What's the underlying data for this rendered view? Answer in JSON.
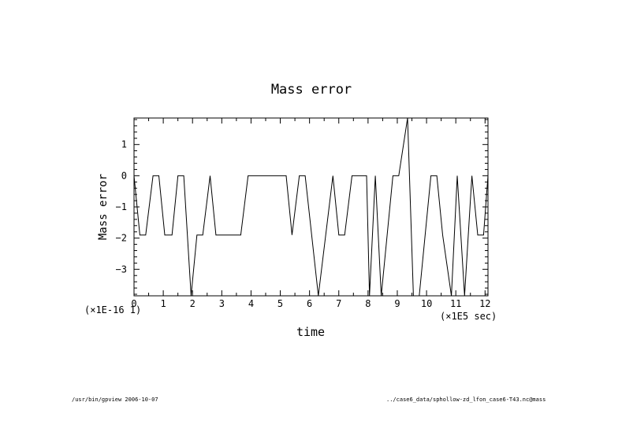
{
  "chart_data": {
    "type": "line",
    "title": "Mass error",
    "xlabel": "time",
    "ylabel": "Mass error",
    "x_multiplier": "(×1E5 sec)",
    "y_multiplier": "(×1E-16 1)",
    "xlim": [
      0,
      12.1
    ],
    "ylim": [
      -3.85,
      1.85
    ],
    "x_ticks": [
      "0",
      "1",
      "2",
      "3",
      "4",
      "5",
      "6",
      "7",
      "8",
      "9",
      "10",
      "11",
      "12"
    ],
    "y_ticks": [
      "1",
      "0",
      "−1",
      "−2",
      "−3"
    ],
    "grid": false,
    "series": [
      {
        "x": [
          0.0,
          0.2,
          0.4,
          0.65,
          0.85,
          1.05,
          1.3,
          1.5,
          1.7,
          1.95,
          2.15,
          2.35,
          2.6,
          2.8,
          3.2,
          3.65,
          3.9,
          4.4,
          5.0,
          5.2,
          5.4,
          5.65,
          5.85,
          6.3,
          6.8,
          7.0,
          7.2,
          7.45,
          7.65,
          7.95,
          8.05,
          8.25,
          8.45,
          8.85,
          9.05,
          9.35,
          9.55,
          9.75,
          10.15,
          10.35,
          10.55,
          10.85,
          11.05,
          11.3,
          11.55,
          11.75,
          11.95,
          12.1
        ],
        "y": [
          0.0,
          -1.9,
          -1.9,
          0.0,
          0.0,
          -1.9,
          -1.9,
          0.0,
          0.0,
          -3.9,
          -1.9,
          -1.9,
          0.0,
          -1.9,
          -1.9,
          -1.9,
          0.0,
          0.0,
          0.0,
          0.0,
          -1.9,
          0.0,
          0.0,
          -3.9,
          0.0,
          -1.9,
          -1.9,
          0.0,
          0.0,
          0.0,
          -3.9,
          0.0,
          -3.9,
          0.0,
          0.0,
          1.9,
          -3.9,
          -3.9,
          0.0,
          0.0,
          -1.9,
          -3.9,
          0.0,
          -3.9,
          0.0,
          -1.9,
          -1.9,
          0.0
        ]
      }
    ]
  },
  "footer": {
    "left": "/usr/bin/gpview  2006-10-07",
    "right": "../case6_data/sphollow-zd_lfon_case6-T43.nc@mass"
  }
}
